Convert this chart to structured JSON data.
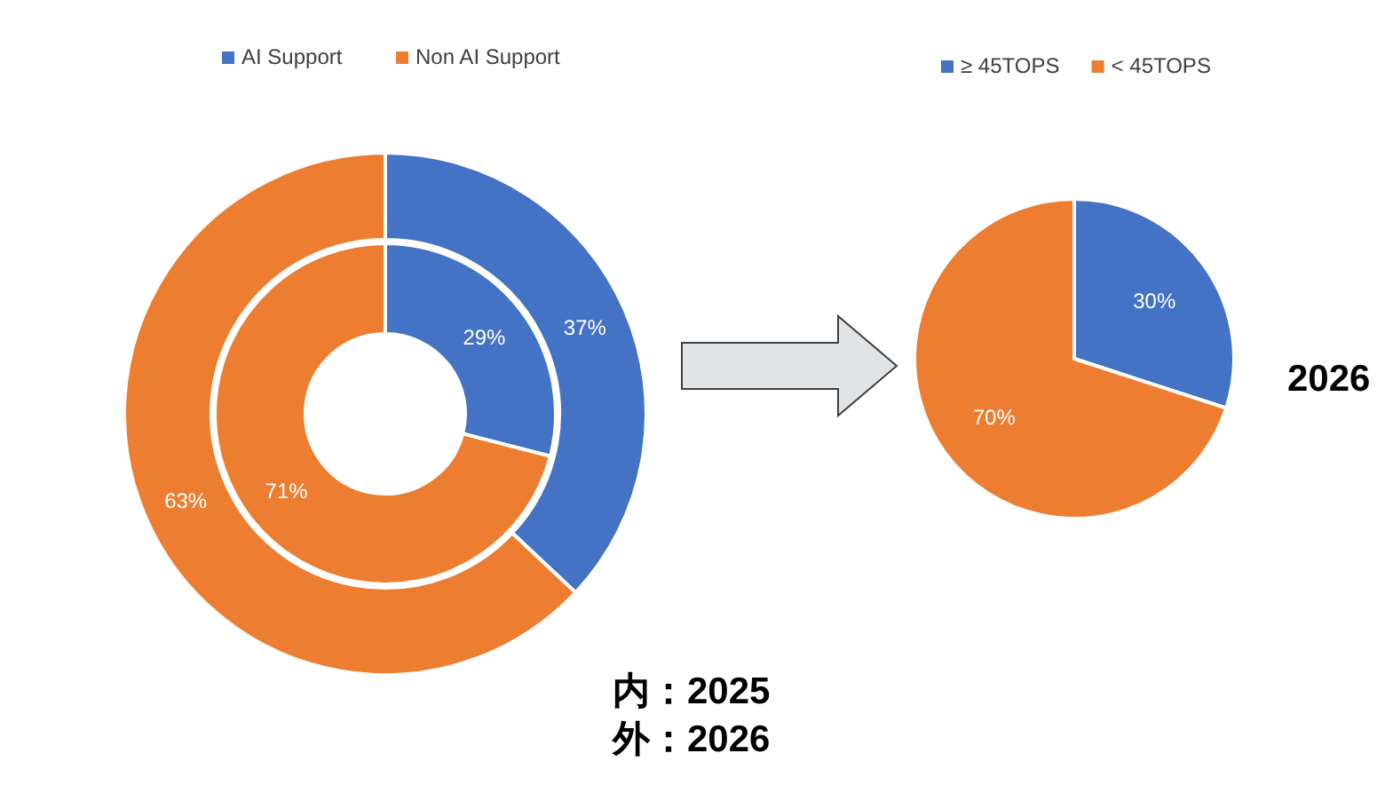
{
  "chart_data": [
    {
      "type": "donut",
      "categories": [
        "AI Support",
        "Non AI Support"
      ],
      "colors": [
        "#4472c4",
        "#ed7d31"
      ],
      "legend": "top",
      "series": [
        {
          "values": [
            29,
            71
          ],
          "value_labels": [
            "29%",
            "71%"
          ]
        },
        {
          "values": [
            37,
            63
          ],
          "value_labels": [
            "37%",
            "63%"
          ]
        }
      ],
      "annotations": [
        "内：2025",
        "外：2026"
      ]
    },
    {
      "type": "pie",
      "categories": [
        "≥ 45TOPS",
        "< 45TOPS"
      ],
      "colors": [
        "#4472c4",
        "#ed7d31"
      ],
      "legend": "top",
      "values": [
        30,
        70
      ],
      "value_labels": [
        "30%",
        "70%"
      ],
      "annotations": [
        "2026"
      ]
    }
  ]
}
